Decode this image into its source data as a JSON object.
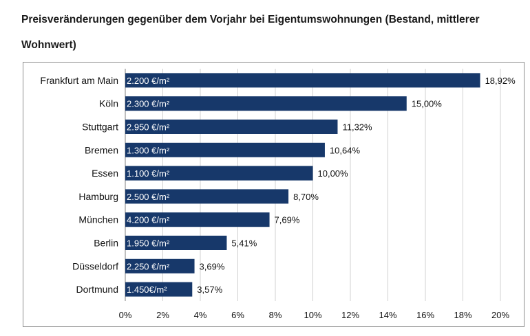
{
  "header": {
    "title": "Preisveränderungen gegenüber dem Vorjahr bei Eigentumswohnungen (Bestand, mittlerer Wohnwert)"
  },
  "colors": {
    "bar": "#17386a",
    "grid": "#d0d0d0",
    "axis": "#7f7f7f"
  },
  "chart_data": {
    "type": "bar",
    "orientation": "horizontal",
    "title": "Preisveränderungen gegenüber dem Vorjahr bei Eigentumswohnungen (Bestand, mittlerer Wohnwert)",
    "categories": [
      "Frankfurt am Main",
      "Köln",
      "Stuttgart",
      "Bremen",
      "Essen",
      "Hamburg",
      "München",
      "Berlin",
      "Düsseldorf",
      "Dortmund"
    ],
    "values": [
      18.92,
      15.0,
      11.32,
      10.64,
      10.0,
      8.7,
      7.69,
      5.41,
      3.69,
      3.57
    ],
    "value_labels": [
      "18,92%",
      "15,00%",
      "11,32%",
      "10,64%",
      "10,00%",
      "8,70%",
      "7,69%",
      "5,41%",
      "3,69%",
      "3,57%"
    ],
    "price_labels": [
      "2.200 €/m²",
      "2.300 €/m²",
      "2.950 €/m²",
      "1.300 €/m²",
      "1.100 €/m²",
      "2.500 €/m²",
      "4.200 €/m²",
      "1.950 €/m²",
      "2.250 €/m²",
      "1.450€/m²"
    ],
    "xlim": [
      0,
      20
    ],
    "x_ticks": [
      0,
      2,
      4,
      6,
      8,
      10,
      12,
      14,
      16,
      18,
      20
    ],
    "x_tick_labels": [
      "0%",
      "2%",
      "4%",
      "6%",
      "8%",
      "10%",
      "12%",
      "14%",
      "16%",
      "18%",
      "20%"
    ],
    "xlabel": "",
    "ylabel": "",
    "grid": true,
    "legend": "none"
  }
}
